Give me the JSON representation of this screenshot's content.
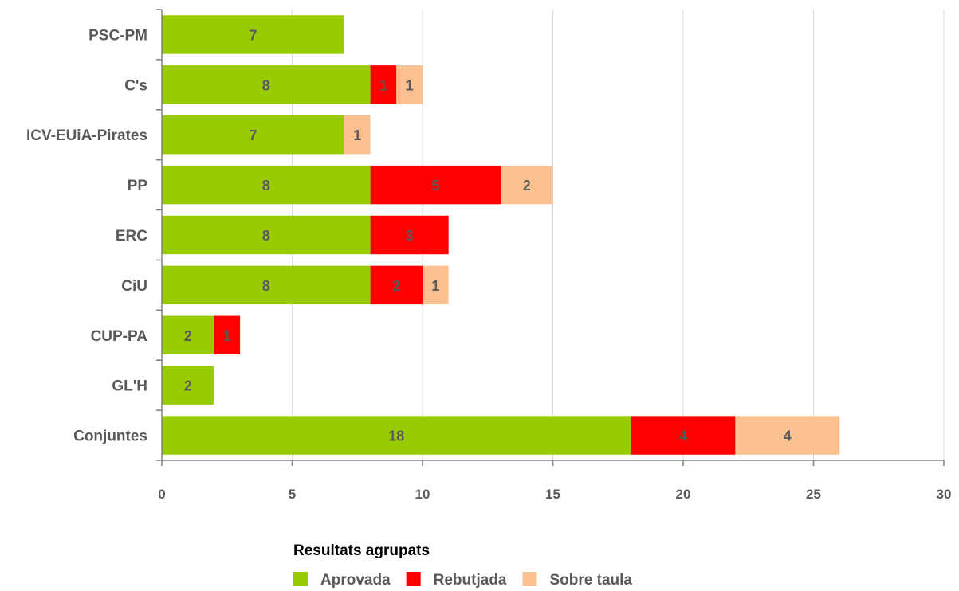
{
  "chart_data": {
    "type": "bar",
    "orientation": "horizontal",
    "stacked": true,
    "categories": [
      "PSC-PM",
      "C's",
      "ICV-EUiA-Pirates",
      "PP",
      "ERC",
      "CiU",
      "CUP-PA",
      "GL'H",
      "Conjuntes"
    ],
    "series": [
      {
        "name": "Aprovada",
        "color": "#99cc00",
        "values": [
          7,
          8,
          7,
          8,
          8,
          8,
          2,
          2,
          18
        ]
      },
      {
        "name": "Rebutjada",
        "color": "#ff0000",
        "values": [
          0,
          1,
          0,
          5,
          3,
          2,
          1,
          0,
          4
        ]
      },
      {
        "name": "Sobre taula",
        "color": "#fac090",
        "values": [
          0,
          1,
          1,
          2,
          0,
          1,
          0,
          0,
          4
        ]
      }
    ],
    "xlim": [
      0,
      30
    ],
    "xticks": [
      0,
      5,
      10,
      15,
      20,
      25,
      30
    ],
    "grid": "vertical",
    "legend": {
      "title": "Resultats agrupats",
      "position": "bottom"
    }
  }
}
